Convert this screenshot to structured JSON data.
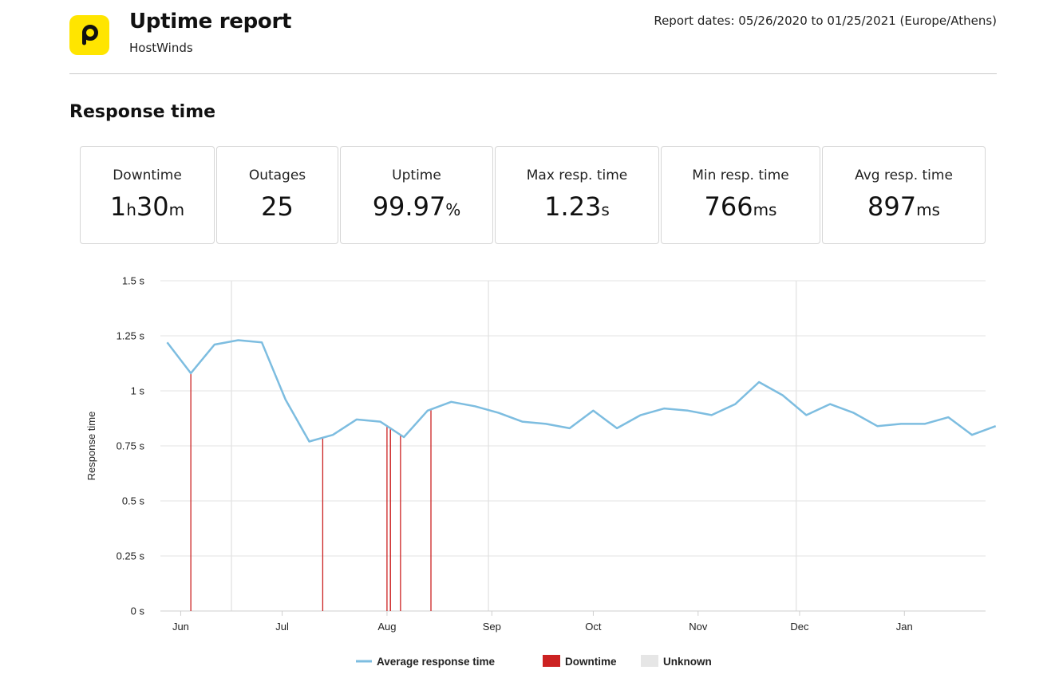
{
  "header": {
    "title": "Uptime report",
    "subtitle": "HostWinds",
    "report_dates": "Report dates: 05/26/2020 to 01/25/2021 (Europe/Athens)"
  },
  "section_title": "Response time",
  "stats": [
    {
      "label": "Downtime",
      "parts": [
        {
          "t": "1",
          "big": true
        },
        {
          "t": "h",
          "big": false
        },
        {
          "t": "30",
          "big": true
        },
        {
          "t": "m",
          "big": false
        }
      ]
    },
    {
      "label": "Outages",
      "parts": [
        {
          "t": "25",
          "big": true
        }
      ]
    },
    {
      "label": "Uptime",
      "parts": [
        {
          "t": "99.97",
          "big": true
        },
        {
          "t": "%",
          "big": false
        }
      ]
    },
    {
      "label": "Max resp. time",
      "parts": [
        {
          "t": "1.23",
          "big": true
        },
        {
          "t": "s",
          "big": false
        }
      ]
    },
    {
      "label": "Min resp. time",
      "parts": [
        {
          "t": "766",
          "big": true
        },
        {
          "t": "ms",
          "big": false
        }
      ]
    },
    {
      "label": "Avg resp. time",
      "parts": [
        {
          "t": "897",
          "big": true
        },
        {
          "t": "ms",
          "big": false
        }
      ]
    }
  ],
  "colors": {
    "line": "#7dbde0",
    "downtime": "#cc2222",
    "unknown": "#e6e6e6",
    "logo": "#ffe500"
  },
  "icons": {
    "logo": "p-logo-icon"
  },
  "chart_data": {
    "type": "line",
    "ylabel": "Response time",
    "ylim": [
      0,
      1.5
    ],
    "yticks": [
      {
        "v": 0,
        "label": "0 s"
      },
      {
        "v": 0.25,
        "label": "0.25 s"
      },
      {
        "v": 0.5,
        "label": "0.5 s"
      },
      {
        "v": 0.75,
        "label": "0.75 s"
      },
      {
        "v": 1,
        "label": "1 s"
      },
      {
        "v": 1.25,
        "label": "1.25 s"
      },
      {
        "v": 1.5,
        "label": "1.5 s"
      }
    ],
    "xlim": [
      "2020-05-26",
      "2021-01-25"
    ],
    "xticks": [
      {
        "d": "2020-06-01",
        "label": "Jun"
      },
      {
        "d": "2020-07-01",
        "label": "Jul"
      },
      {
        "d": "2020-08-01",
        "label": "Aug"
      },
      {
        "d": "2020-09-01",
        "label": "Sep"
      },
      {
        "d": "2020-10-01",
        "label": "Oct"
      },
      {
        "d": "2020-11-01",
        "label": "Nov"
      },
      {
        "d": "2020-12-01",
        "label": "Dec"
      },
      {
        "d": "2021-01-01",
        "label": "Jan"
      }
    ],
    "grid": true,
    "legend_position": "bottom-center",
    "series": [
      {
        "name": "Average response time",
        "points": [
          [
            "2020-05-28",
            1.22
          ],
          [
            "2020-06-04",
            1.08
          ],
          [
            "2020-06-11",
            1.21
          ],
          [
            "2020-06-18",
            1.23
          ],
          [
            "2020-06-25",
            1.22
          ],
          [
            "2020-07-02",
            0.96
          ],
          [
            "2020-07-09",
            0.77
          ],
          [
            "2020-07-16",
            0.8
          ],
          [
            "2020-07-23",
            0.87
          ],
          [
            "2020-07-30",
            0.86
          ],
          [
            "2020-08-06",
            0.79
          ],
          [
            "2020-08-13",
            0.91
          ],
          [
            "2020-08-20",
            0.95
          ],
          [
            "2020-08-27",
            0.93
          ],
          [
            "2020-09-03",
            0.9
          ],
          [
            "2020-09-10",
            0.86
          ],
          [
            "2020-09-17",
            0.85
          ],
          [
            "2020-09-24",
            0.83
          ],
          [
            "2020-10-01",
            0.91
          ],
          [
            "2020-10-08",
            0.83
          ],
          [
            "2020-10-15",
            0.89
          ],
          [
            "2020-10-22",
            0.92
          ],
          [
            "2020-10-29",
            0.91
          ],
          [
            "2020-11-05",
            0.89
          ],
          [
            "2020-11-12",
            0.94
          ],
          [
            "2020-11-19",
            1.04
          ],
          [
            "2020-11-26",
            0.98
          ],
          [
            "2020-12-03",
            0.89
          ],
          [
            "2020-12-10",
            0.94
          ],
          [
            "2020-12-17",
            0.9
          ],
          [
            "2020-12-24",
            0.84
          ],
          [
            "2020-12-31",
            0.85
          ],
          [
            "2021-01-07",
            0.85
          ],
          [
            "2021-01-14",
            0.88
          ],
          [
            "2021-01-21",
            0.8
          ],
          [
            "2021-01-28",
            0.84
          ]
        ]
      }
    ],
    "downtime_events": [
      "2020-06-04",
      "2020-07-13",
      "2020-08-01",
      "2020-08-02",
      "2020-08-02",
      "2020-08-05",
      "2020-08-14"
    ],
    "unknown_periods": [
      "2020-06-16",
      "2020-08-31",
      "2020-11-30"
    ],
    "legend": [
      {
        "label": "Average response time",
        "kind": "line"
      },
      {
        "label": "Downtime",
        "kind": "downtime"
      },
      {
        "label": "Unknown",
        "kind": "unknown"
      }
    ]
  }
}
